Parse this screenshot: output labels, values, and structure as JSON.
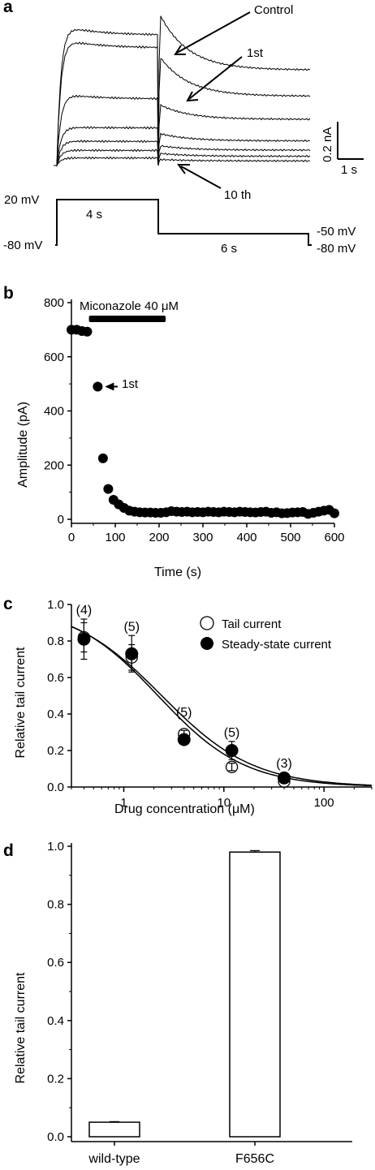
{
  "panel_a": {
    "letter": "a",
    "trace_labels": {
      "control": "Control",
      "first": "1st",
      "tenth": "10 th"
    },
    "scale_bar": {
      "current": "0.2 nA",
      "time": "1 s"
    },
    "protocol": {
      "v_hold": "-80 mV",
      "v_step": "20 mV",
      "v_tail": "-50 mV",
      "v_end": "-80 mV",
      "step_duration": "4 s",
      "tail_duration": "6 s"
    },
    "traces_relative": [
      {
        "step": 0.92,
        "peak": 1.0,
        "end": 0.62
      },
      {
        "step": 0.83,
        "peak": 0.72,
        "end": 0.45
      },
      {
        "step": 0.47,
        "peak": 0.4,
        "end": 0.3
      },
      {
        "step": 0.25,
        "peak": 0.21,
        "end": 0.16
      },
      {
        "step": 0.16,
        "peak": 0.13,
        "end": 0.1
      },
      {
        "step": 0.1,
        "peak": 0.08,
        "end": 0.06
      },
      {
        "step": 0.05,
        "peak": 0.04,
        "end": 0.03
      }
    ]
  },
  "chart_data": [
    {
      "panel": "b",
      "type": "scatter",
      "xlabel": "Time (s)",
      "ylabel": "Amplitude (pA)",
      "xlim": [
        0,
        600
      ],
      "ylim": [
        0,
        800
      ],
      "xticks": [
        0,
        100,
        200,
        300,
        400,
        500,
        600
      ],
      "yticks": [
        0,
        200,
        400,
        600,
        800
      ],
      "annotations": {
        "drug_bar": "Miconazole 40 μM",
        "drug_start": 40,
        "drug_end": 215,
        "arrow": "1st"
      },
      "x": [
        0,
        12,
        24,
        36,
        60,
        72,
        84,
        96,
        108,
        120,
        132,
        144,
        156,
        168,
        180,
        192,
        204,
        216,
        228,
        240,
        252,
        264,
        276,
        288,
        300,
        312,
        324,
        336,
        348,
        360,
        372,
        384,
        396,
        408,
        420,
        432,
        444,
        456,
        468,
        480,
        492,
        504,
        516,
        528,
        540,
        552,
        564,
        576,
        588,
        600
      ],
      "y": [
        700,
        700,
        695,
        693,
        490,
        225,
        112,
        72,
        55,
        42,
        32,
        28,
        26,
        25,
        25,
        24,
        24,
        26,
        30,
        28,
        27,
        28,
        26,
        27,
        26,
        28,
        27,
        26,
        28,
        27,
        26,
        28,
        27,
        26,
        25,
        27,
        28,
        24,
        26,
        22,
        23,
        25,
        26,
        27,
        20,
        24,
        28,
        32,
        35,
        22
      ]
    },
    {
      "panel": "c",
      "type": "scatter",
      "xlabel": "Drug concentration (μM)",
      "ylabel": "Relative tail current",
      "xscale": "log",
      "xlim": [
        0.3,
        300
      ],
      "ylim": [
        0,
        1.0
      ],
      "xticks": [
        "1",
        "10",
        "100"
      ],
      "yticks": [
        "0.0",
        "0.2",
        "0.4",
        "0.6",
        "0.8",
        "1.0"
      ],
      "series": [
        {
          "name": "Tail current",
          "marker": "open",
          "x": [
            0.4,
            1.2,
            4,
            12,
            40
          ],
          "y": [
            0.82,
            0.71,
            0.29,
            0.11,
            0.03
          ],
          "err": [
            0.08,
            0.07,
            0.02,
            0.02,
            0.01
          ]
        },
        {
          "name": "Steady-state current",
          "marker": "filled",
          "x": [
            0.4,
            1.2,
            4,
            12,
            40
          ],
          "y": [
            0.81,
            0.73,
            0.26,
            0.2,
            0.05
          ],
          "err": [
            0.11,
            0.1,
            0.02,
            0.05,
            0.01
          ]
        }
      ],
      "fits": [
        {
          "ic50": 2.2,
          "hill": 1.0
        },
        {
          "ic50": 2.4,
          "hill": 0.95
        }
      ],
      "n_labels": [
        {
          "x": 0.4,
          "y": 0.92,
          "text": "(4)"
        },
        {
          "x": 1.2,
          "y": 0.83,
          "text": "(5)"
        },
        {
          "x": 4,
          "y": 0.36,
          "text": "(5)"
        },
        {
          "x": 12,
          "y": 0.25,
          "text": "(5)"
        },
        {
          "x": 40,
          "y": 0.08,
          "text": "(3)"
        }
      ],
      "legend_position": "top-right"
    },
    {
      "panel": "d",
      "type": "bar",
      "ylabel": "Relative tail current",
      "ylim": [
        0,
        1.0
      ],
      "yticks": [
        "0.0",
        "0.2",
        "0.4",
        "0.6",
        "0.8",
        "1.0"
      ],
      "categories": [
        "wild-type",
        "F656C"
      ],
      "values": [
        0.05,
        0.98
      ],
      "errors": [
        0.002,
        0.005
      ]
    }
  ]
}
